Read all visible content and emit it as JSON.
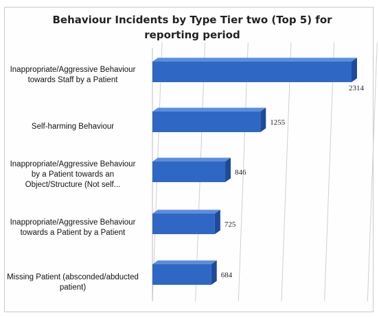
{
  "chart_data": {
    "type": "bar",
    "orientation": "horizontal",
    "title": "Behaviour Incidents by Type Tier two (Top 5) for reporting period",
    "categories": [
      "Inappropriate/Aggressive Behaviour towards Staff by a Patient",
      "Self-harming Behaviour",
      "Inappropriate/Aggressive Behaviour by a Patient towards an Object/Structure (Not self...",
      "Inappropriate/Aggressive Behaviour towards a Patient by a Patient",
      "Missing Patient (absconded/abducted patient)"
    ],
    "values": [
      2314,
      1255,
      846,
      725,
      684
    ],
    "value_labels": [
      "2314",
      "1255",
      "846",
      "725",
      "684"
    ],
    "xlim": [
      0,
      2500
    ],
    "grid": true,
    "legend": "none",
    "bar_color": "#2f67c4"
  }
}
